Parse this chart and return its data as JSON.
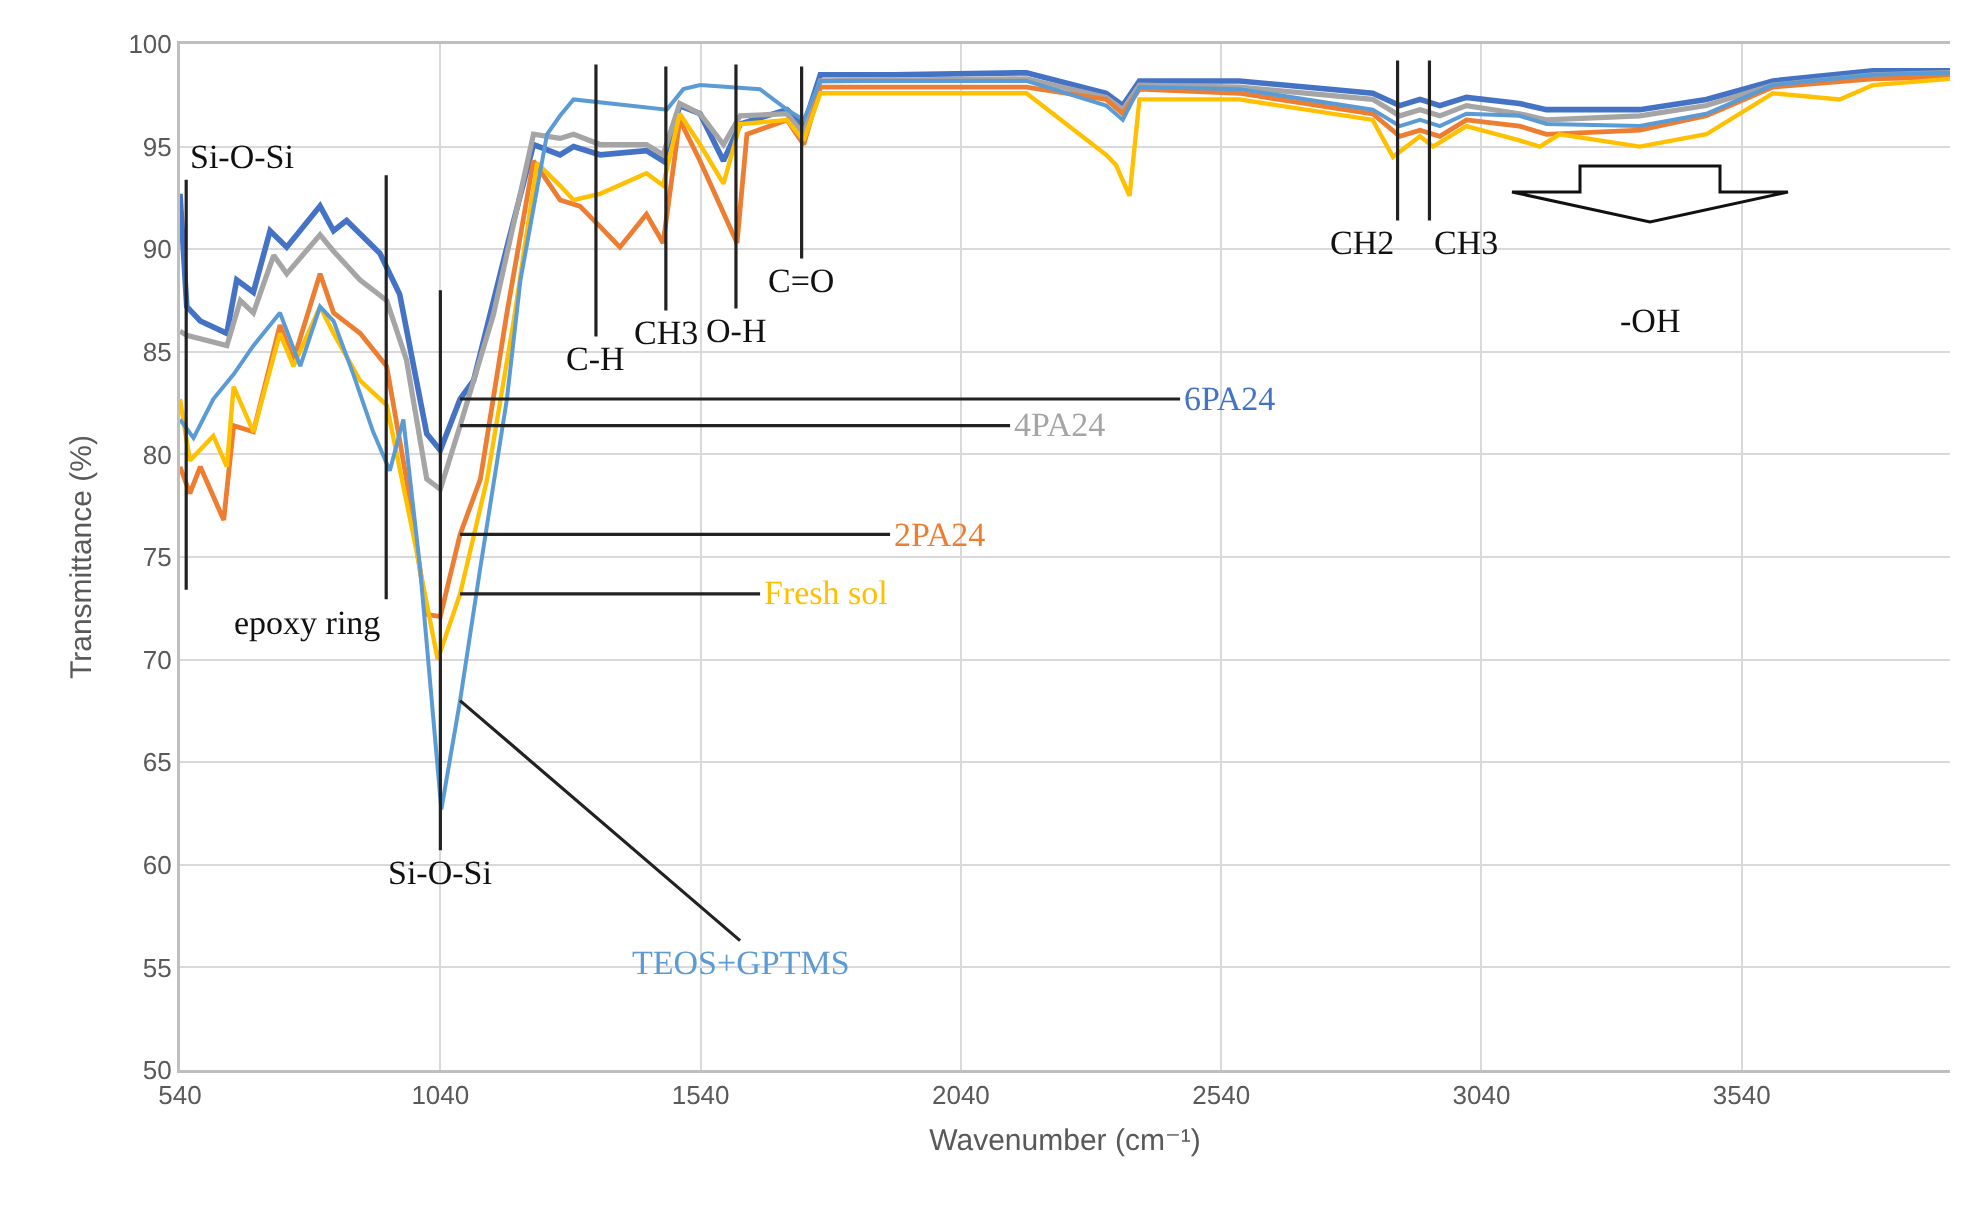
{
  "chart_data": {
    "type": "line",
    "xlabel": "Wavenumber (cm⁻¹)",
    "ylabel": "Transmittance (%)",
    "xlim": [
      540,
      3940
    ],
    "xticks": [
      540,
      1040,
      1540,
      2040,
      2540,
      3040,
      3540
    ],
    "ylim": [
      50,
      100
    ],
    "yticks": [
      50,
      55,
      60,
      65,
      70,
      75,
      80,
      85,
      90,
      95,
      100
    ],
    "grid": true,
    "marker": "none",
    "line_style": "solid",
    "series": [
      {
        "name": "6PA24",
        "color": "#4472c4",
        "x": [
          540,
          553,
          579,
          630,
          649,
          681,
          713,
          745,
          809,
          835,
          860,
          924,
          962,
          1014,
          1040,
          1078,
          1104,
          1168,
          1219,
          1270,
          1296,
          1347,
          1436,
          1468,
          1500,
          1539,
          1584,
          1616,
          1706,
          1738,
          1770,
          1910,
          2166,
          2319,
          2351,
          2383,
          2575,
          2831,
          2883,
          2922,
          2960,
          3011,
          3113,
          3165,
          3344,
          3472,
          3600,
          3792,
          3940
        ],
        "values": [
          92.7,
          87.2,
          86.5,
          85.9,
          88.5,
          87.9,
          90.9,
          90.1,
          92.1,
          90.9,
          91.4,
          89.8,
          87.8,
          81.0,
          80.2,
          82.7,
          83.6,
          90.1,
          95.1,
          94.6,
          95.0,
          94.6,
          94.8,
          94.3,
          97.0,
          96.6,
          94.3,
          96.1,
          96.8,
          96.0,
          98.5,
          98.5,
          98.6,
          97.6,
          97.0,
          98.2,
          98.2,
          97.6,
          97.0,
          97.3,
          97.0,
          97.4,
          97.1,
          96.8,
          96.8,
          97.3,
          98.2,
          98.7,
          98.7
        ]
      },
      {
        "name": "4PA24",
        "color": "#a5a5a5",
        "x": [
          540,
          553,
          630,
          656,
          681,
          720,
          745,
          809,
          835,
          886,
          937,
          975,
          1014,
          1040,
          1078,
          1142,
          1219,
          1270,
          1296,
          1347,
          1436,
          1468,
          1500,
          1539,
          1584,
          1616,
          1706,
          1738,
          1770,
          2166,
          2319,
          2351,
          2383,
          2575,
          2831,
          2883,
          2922,
          2960,
          3011,
          3113,
          3165,
          3344,
          3472,
          3600,
          3792,
          3940
        ],
        "values": [
          86.0,
          85.8,
          85.3,
          87.5,
          86.9,
          89.7,
          88.8,
          90.7,
          89.9,
          88.5,
          87.5,
          84.6,
          78.8,
          78.3,
          81.4,
          86.8,
          95.6,
          95.4,
          95.6,
          95.1,
          95.1,
          94.6,
          97.1,
          96.6,
          95.1,
          96.5,
          96.6,
          95.6,
          98.2,
          98.3,
          97.4,
          96.8,
          98.0,
          97.9,
          97.3,
          96.5,
          96.8,
          96.5,
          97.0,
          96.6,
          96.3,
          96.5,
          97.0,
          98.0,
          98.5,
          98.6
        ]
      },
      {
        "name": "2PA24",
        "color": "#ed7d31",
        "x": [
          540,
          559,
          579,
          624,
          643,
          681,
          732,
          758,
          809,
          835,
          886,
          937,
          975,
          1014,
          1040,
          1078,
          1117,
          1168,
          1219,
          1270,
          1308,
          1347,
          1385,
          1436,
          1468,
          1500,
          1539,
          1610,
          1629,
          1706,
          1738,
          1770,
          2166,
          2319,
          2351,
          2383,
          2575,
          2831,
          2883,
          2922,
          2960,
          3011,
          3113,
          3165,
          3344,
          3472,
          3600,
          3792,
          3940
        ],
        "values": [
          79.4,
          78.1,
          79.4,
          76.8,
          81.4,
          81.1,
          86.3,
          84.6,
          88.8,
          86.9,
          85.9,
          84.3,
          78.8,
          72.2,
          72.1,
          76.1,
          78.8,
          86.9,
          94.3,
          92.4,
          92.1,
          91.1,
          90.1,
          91.7,
          90.3,
          96.3,
          94.3,
          90.3,
          95.6,
          96.3,
          95.1,
          97.9,
          97.9,
          97.3,
          96.6,
          97.8,
          97.6,
          96.6,
          95.5,
          95.8,
          95.5,
          96.3,
          96.0,
          95.6,
          95.8,
          96.5,
          97.9,
          98.3,
          98.4
        ]
      },
      {
        "name": "Fresh sol",
        "color": "#ffc000",
        "x": [
          540,
          559,
          604,
          630,
          643,
          681,
          732,
          758,
          809,
          835,
          886,
          937,
          988,
          1035,
          1078,
          1130,
          1181,
          1226,
          1270,
          1296,
          1347,
          1436,
          1468,
          1500,
          1539,
          1584,
          1616,
          1706,
          1738,
          1770,
          2166,
          2319,
          2338,
          2364,
          2383,
          2575,
          2831,
          2870,
          2922,
          2947,
          3011,
          3113,
          3152,
          3190,
          3344,
          3472,
          3600,
          3728,
          3792,
          3940
        ],
        "values": [
          82.7,
          79.7,
          80.9,
          79.4,
          83.3,
          81.1,
          85.9,
          84.3,
          87.2,
          85.9,
          83.6,
          82.4,
          76.1,
          70.0,
          73.2,
          78.8,
          86.5,
          94.2,
          93.1,
          92.4,
          92.7,
          93.7,
          93.1,
          96.6,
          95.1,
          93.2,
          96.1,
          96.3,
          95.3,
          97.6,
          97.6,
          94.6,
          94.1,
          92.6,
          97.3,
          97.3,
          96.3,
          94.5,
          95.5,
          95.0,
          96.0,
          95.3,
          95.0,
          95.6,
          95.0,
          95.6,
          97.6,
          97.3,
          98.0,
          98.3
        ]
      },
      {
        "name": "TEOS+GPTMS",
        "color": "#5b9bd5",
        "x": [
          540,
          566,
          604,
          643,
          681,
          732,
          771,
          809,
          835,
          873,
          911,
          943,
          969,
          1001,
          1042,
          1078,
          1117,
          1168,
          1194,
          1245,
          1270,
          1296,
          1475,
          1507,
          1539,
          1654,
          1706,
          1738,
          1770,
          2166,
          2319,
          2351,
          2383,
          2575,
          2831,
          2883,
          2922,
          2960,
          3011,
          3113,
          3165,
          3344,
          3472,
          3600,
          3792,
          3940
        ],
        "values": [
          81.7,
          80.8,
          82.7,
          83.9,
          85.3,
          86.9,
          84.3,
          87.2,
          86.5,
          83.9,
          81.1,
          79.2,
          81.7,
          74.5,
          62.7,
          68.0,
          74.5,
          82.7,
          88.5,
          95.6,
          96.5,
          97.3,
          96.8,
          97.8,
          98.0,
          97.8,
          96.8,
          96.3,
          98.2,
          98.2,
          97.0,
          96.3,
          97.9,
          97.8,
          96.8,
          96.0,
          96.3,
          96.0,
          96.6,
          96.5,
          96.1,
          96.0,
          96.6,
          98.0,
          98.5,
          98.6
        ]
      }
    ],
    "annotations": [
      "Si-O-Si",
      "epoxy ring",
      "Si-O-Si",
      "C-H",
      "CH3",
      "O-H",
      "C=O",
      "CH2",
      "CH3",
      "-OH"
    ]
  }
}
